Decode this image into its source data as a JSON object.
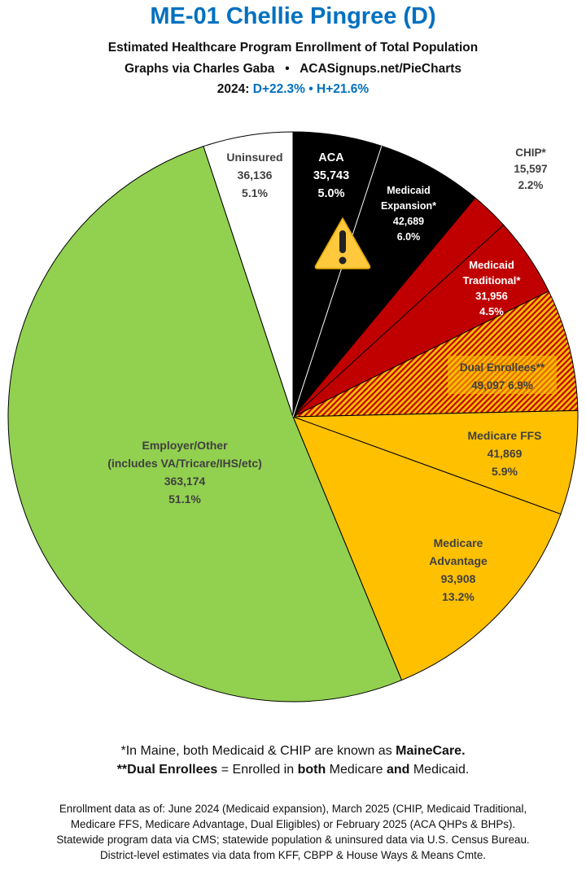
{
  "header": {
    "title": "ME-01 Chellie Pingree (D)",
    "subtitle": "Estimated Healthcare Program Enrollment of Total Population",
    "credit_left": "Graphs via Charles Gaba",
    "credit_sep": "•",
    "credit_right": "ACASignups.net/PieCharts",
    "pvi_year": "2024:",
    "pvi_d": "D+22.3%",
    "pvi_sep": "•",
    "pvi_h": "H+21.6%"
  },
  "chart_data": {
    "type": "pie",
    "start": "12 o'clock, clockwise",
    "slices": [
      {
        "label": "ACA",
        "value": 35743,
        "percent": "5.0%",
        "color": "#000000"
      },
      {
        "label": "Medicaid Expansion*",
        "value": 42689,
        "percent": "6.0%",
        "color": "#000000"
      },
      {
        "label": "CHIP*",
        "value": 15597,
        "percent": "2.2%",
        "color": "#c00000"
      },
      {
        "label": "Medicaid Traditional*",
        "value": 31956,
        "percent": "4.5%",
        "color": "#c00000"
      },
      {
        "label": "Dual Enrollees**",
        "value": 49097,
        "percent": "6.9%",
        "color": "#ffc000",
        "hatch_color": "#c00000"
      },
      {
        "label": "Medicare FFS",
        "value": 41869,
        "percent": "5.9%",
        "color": "#ffc000"
      },
      {
        "label": "Medicare Advantage",
        "value": 93908,
        "percent": "13.2%",
        "color": "#ffc000"
      },
      {
        "label": "Employer/Other (includes VA/Tricare/IHS/etc)",
        "value": 363174,
        "percent": "51.1%",
        "color": "#92d050"
      },
      {
        "label": "Uninsured",
        "value": 36136,
        "percent": "5.1%",
        "color": "#ffffff"
      }
    ],
    "display": {
      "aca": [
        "ACA",
        "35,743",
        "5.0%"
      ],
      "expansion": [
        "Medicaid",
        "Expansion*",
        "42,689",
        "6.0%"
      ],
      "chip": [
        "CHIP*",
        "15,597",
        "2.2%"
      ],
      "traditional": [
        "Medicaid",
        "Traditional*",
        "31,956",
        "4.5%"
      ],
      "dual": [
        "Dual Enrollees**",
        "49,097 6.9%"
      ],
      "ffs": [
        "Medicare FFS",
        "41,869",
        "5.9%"
      ],
      "advantage": [
        "Medicare",
        "Advantage",
        "93,908",
        "13.2%"
      ],
      "employer": [
        "Employer/Other",
        "(includes VA/Tricare/IHS/etc)",
        "363,174",
        "51.1%"
      ],
      "uninsured": [
        "Uninsured",
        "36,136",
        "5.1%"
      ]
    },
    "annotation_icon": "warning-icon"
  },
  "notes": {
    "n1_pre": "*In Maine, both Medicaid & CHIP are known as ",
    "n1_bold": "MaineCare.",
    "n2_b1": "**Dual Enrollees",
    "n2_t1": " = Enrolled in ",
    "n2_b2": "both",
    "n2_t2": " Medicare ",
    "n2_b3": "and",
    "n2_t3": " Medicaid.",
    "sources": [
      "Enrollment data as of: June 2024 (Medicaid expansion), March 2025 (CHIP, Medicaid Traditional,",
      "Medicare FFS, Medicare Advantage, Dual Eligibles) or February 2025 (ACA QHPs & BHPs).",
      "Statewide program data via CMS; statewide population & uninsured data via U.S. Census Bureau.",
      "District-level estimates via data from KFF, CBPP & House Ways & Means Cmte."
    ]
  }
}
